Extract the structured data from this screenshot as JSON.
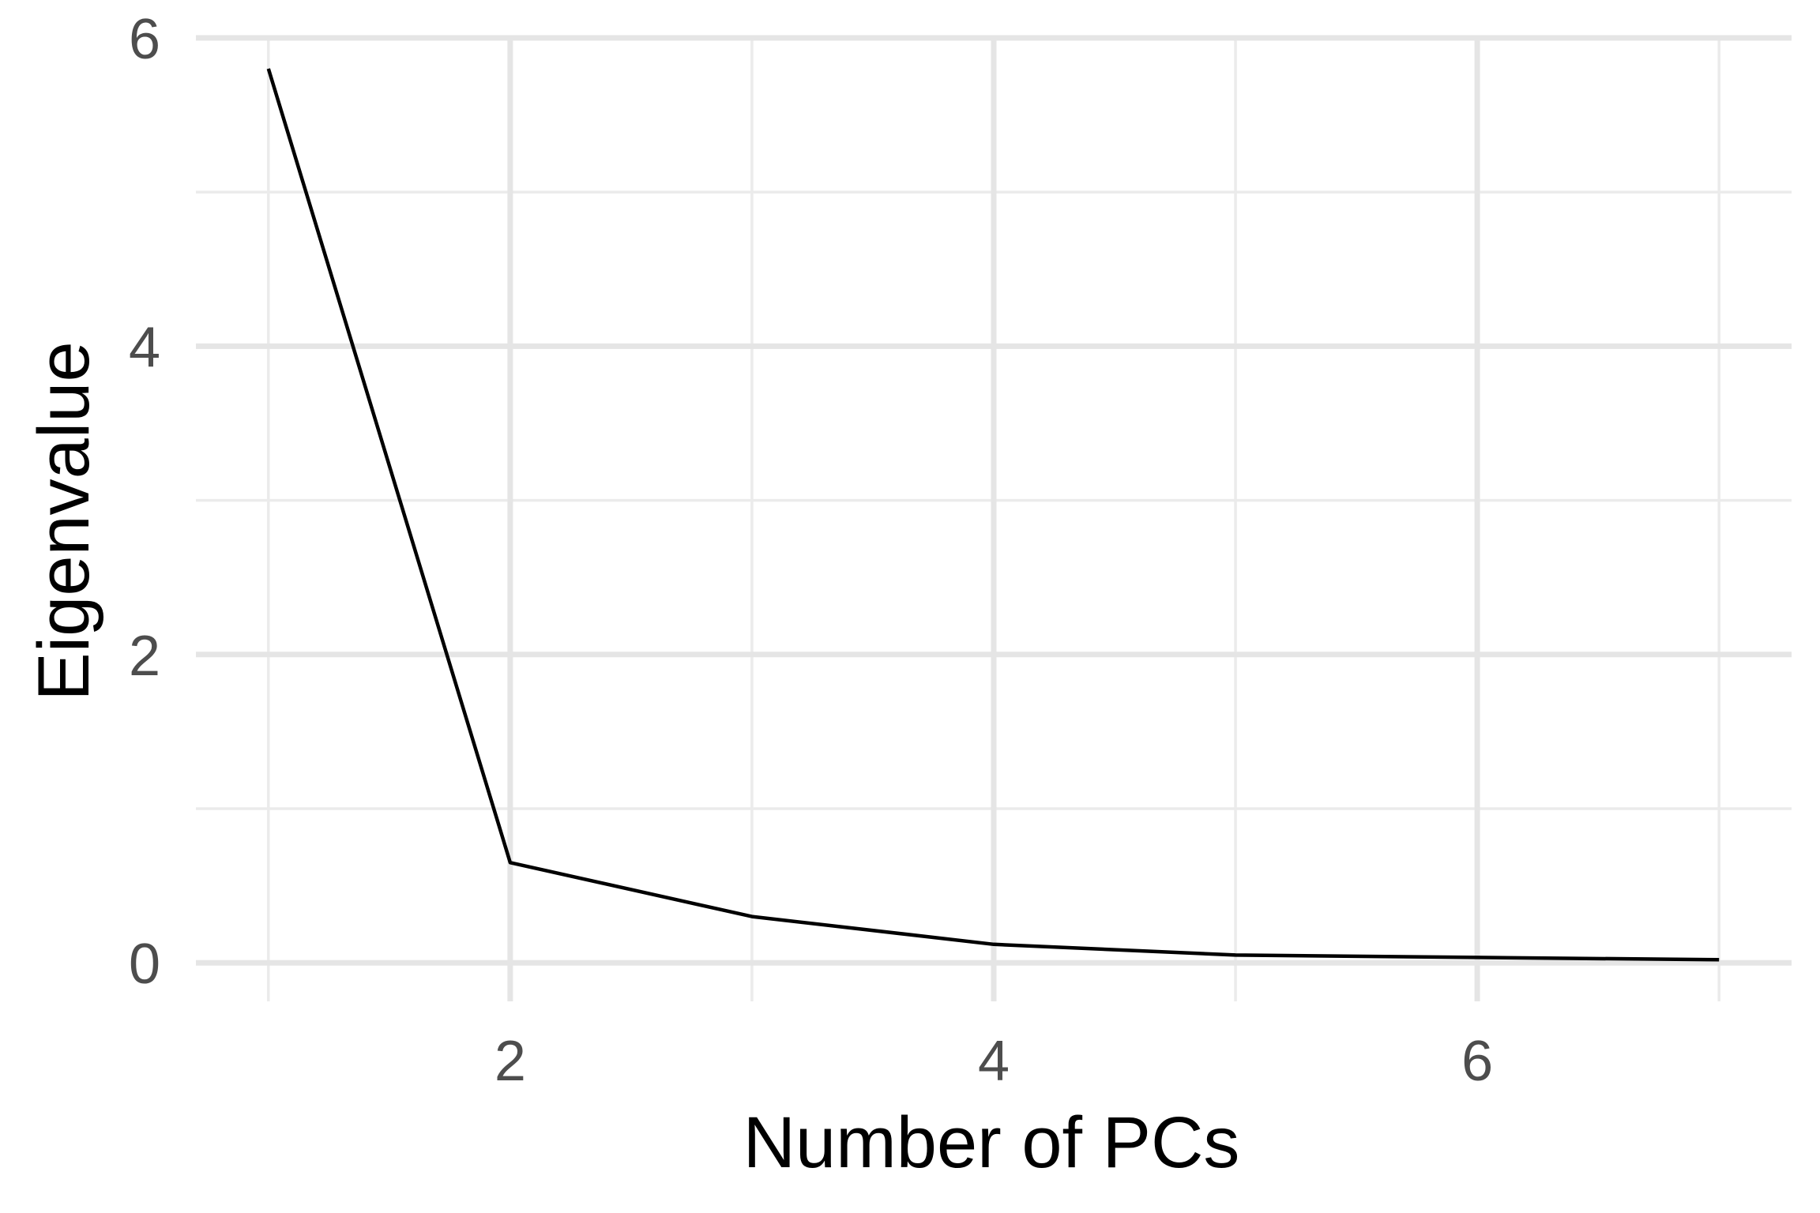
{
  "chart_data": {
    "type": "line",
    "title": "",
    "xlabel": "Number of PCs",
    "ylabel": "Eigenvalue",
    "x": [
      1,
      2,
      3,
      4,
      5,
      6,
      7
    ],
    "values": [
      5.8,
      0.65,
      0.3,
      0.12,
      0.05,
      0.035,
      0.02
    ],
    "xlim": [
      0.7,
      7.3
    ],
    "ylim": [
      -0.25,
      6.0
    ],
    "x_major_ticks": [
      2,
      4,
      6
    ],
    "x_tick_labels": [
      "2",
      "4",
      "6"
    ],
    "x_minor_ticks": [
      1,
      3,
      5,
      7
    ],
    "y_major_ticks": [
      0,
      2,
      4,
      6
    ],
    "y_tick_labels": [
      "0",
      "2",
      "4",
      "6"
    ],
    "y_minor_ticks": [
      1,
      3,
      5
    ],
    "grid": true,
    "line_color": "#000000"
  }
}
